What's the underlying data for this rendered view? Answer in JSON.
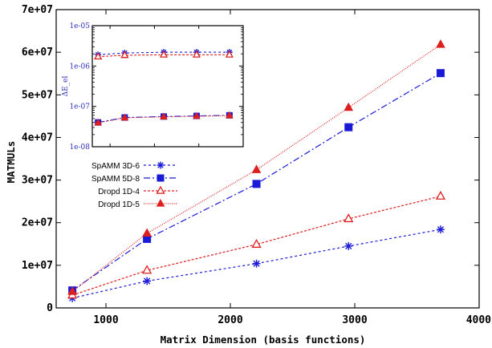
{
  "chart_data": [
    {
      "type": "line",
      "xlabel": "Matrix Dimension (basis functions)",
      "ylabel": "MATMULs",
      "xlim": [
        600,
        4000
      ],
      "ylim": [
        0,
        70000000
      ],
      "xticks": [
        1000,
        2000,
        3000,
        4000
      ],
      "xtick_labels": [
        "1000",
        "2000",
        "3000",
        "4000"
      ],
      "yticks": [
        0,
        10000000,
        20000000,
        30000000,
        40000000,
        50000000,
        60000000,
        70000000
      ],
      "ytick_labels": [
        "0",
        "1e+07",
        "2e+07",
        "3e+07",
        "4e+07",
        "5e+07",
        "6e+07",
        "7e+07"
      ],
      "grid": false,
      "legend_position": "middle-left",
      "series": [
        {
          "name": "SpAMM 3D-6",
          "color": "#1a1ad6",
          "marker": "asterisk",
          "dash": "3,3",
          "x": [
            730,
            1330,
            2210,
            2950,
            3690
          ],
          "y": [
            2300000,
            6300000,
            10400000,
            14500000,
            18400000
          ]
        },
        {
          "name": "SpAMM 5D-8",
          "color": "#1a1ad6",
          "marker": "square",
          "dash": "8,3,2,3",
          "x": [
            730,
            1330,
            2210,
            2950,
            3690
          ],
          "y": [
            4100000,
            16200000,
            29100000,
            42400000,
            55100000
          ]
        },
        {
          "name": "Dropd 1D-4",
          "color": "#dd1f1f",
          "marker": "triangle-open",
          "dash": "3,2",
          "x": [
            730,
            1330,
            2210,
            2950,
            3690
          ],
          "y": [
            3000000,
            8800000,
            14900000,
            20900000,
            26200000
          ]
        },
        {
          "name": "Dropd 1D-5",
          "color": "#dd1f1f",
          "marker": "triangle-filled",
          "dash": "1,1.5",
          "x": [
            730,
            1330,
            2210,
            2950,
            3690
          ],
          "y": [
            3800000,
            17500000,
            32400000,
            47000000,
            61800000
          ]
        }
      ]
    },
    {
      "type": "line",
      "role": "inset",
      "xlabel": "",
      "ylabel": "ΔE_el",
      "xlim": [
        600,
        4000
      ],
      "ylim": [
        1e-08,
        1e-05
      ],
      "yscale": "log",
      "yticks": [
        1e-08,
        1e-07,
        1e-06,
        1e-05
      ],
      "ytick_labels": [
        "1e-08",
        "1e-07",
        "1e-06",
        "1e-05"
      ],
      "grid": false,
      "series": [
        {
          "name": "SpAMM 3D-6",
          "color": "#1a1ad6",
          "marker": "asterisk",
          "dash": "3,3",
          "x": [
            730,
            1330,
            2210,
            2950,
            3690
          ],
          "y": [
            1.9e-06,
            2.1e-06,
            2.2e-06,
            2.2e-06,
            2.2e-06
          ]
        },
        {
          "name": "SpAMM 5D-8",
          "color": "#1a1ad6",
          "marker": "square",
          "dash": "8,3,2,3",
          "x": [
            730,
            1330,
            2210,
            2950,
            3690
          ],
          "y": [
            4e-08,
            5.3e-08,
            5.6e-08,
            5.8e-08,
            6e-08
          ]
        },
        {
          "name": "Dropd 1D-4",
          "color": "#dd1f1f",
          "marker": "triangle-open",
          "dash": "3,2",
          "x": [
            730,
            1330,
            2210,
            2950,
            3690
          ],
          "y": [
            1.7e-06,
            1.85e-06,
            1.9e-06,
            1.9e-06,
            1.9e-06
          ]
        },
        {
          "name": "Dropd 1D-5",
          "color": "#dd1f1f",
          "marker": "triangle-filled",
          "dash": "1,1.5",
          "x": [
            730,
            1330,
            2210,
            2950,
            3690
          ],
          "y": [
            3.9e-08,
            5.2e-08,
            5.5e-08,
            5.7e-08,
            5.9e-08
          ]
        }
      ]
    }
  ]
}
